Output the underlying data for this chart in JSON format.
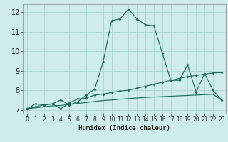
{
  "xlabel": "Humidex (Indice chaleur)",
  "bg_color": "#ceecea",
  "grid_color": "#b0d8d4",
  "line_color": "#1a6b5a",
  "xlim": [
    -0.5,
    23.5
  ],
  "ylim": [
    6.8,
    12.4
  ],
  "xticks": [
    0,
    1,
    2,
    3,
    4,
    5,
    6,
    7,
    8,
    9,
    10,
    11,
    12,
    13,
    14,
    15,
    16,
    17,
    18,
    19,
    20,
    21,
    22,
    23
  ],
  "yticks": [
    7,
    8,
    9,
    10,
    11,
    12
  ],
  "line1_x": [
    0,
    1,
    2,
    3,
    4,
    5,
    6,
    7,
    8,
    9,
    10,
    11,
    12,
    13,
    14,
    15,
    16,
    17,
    18,
    19,
    20,
    21,
    22,
    23
  ],
  "line1_y": [
    7.05,
    7.3,
    7.25,
    7.3,
    7.5,
    7.25,
    7.4,
    7.75,
    8.05,
    9.45,
    11.55,
    11.65,
    12.15,
    11.65,
    11.35,
    11.3,
    9.9,
    8.5,
    8.5,
    9.3,
    7.9,
    8.85,
    8.0,
    7.5
  ],
  "line2_x": [
    0,
    1,
    2,
    3,
    4,
    5,
    6,
    7,
    8,
    9,
    10,
    11,
    12,
    13,
    14,
    15,
    16,
    17,
    18,
    19,
    20,
    21,
    22,
    23
  ],
  "line2_y": [
    7.05,
    7.15,
    7.25,
    7.3,
    7.05,
    7.35,
    7.55,
    7.6,
    7.75,
    7.8,
    7.88,
    7.95,
    8.0,
    8.1,
    8.2,
    8.3,
    8.4,
    8.5,
    8.6,
    8.7,
    8.75,
    8.82,
    8.88,
    8.9
  ],
  "line3_x": [
    0,
    1,
    2,
    3,
    4,
    5,
    6,
    7,
    8,
    9,
    10,
    11,
    12,
    13,
    14,
    15,
    16,
    17,
    18,
    19,
    20,
    21,
    22,
    23
  ],
  "line3_y": [
    7.05,
    7.1,
    7.15,
    7.2,
    7.22,
    7.27,
    7.32,
    7.37,
    7.42,
    7.47,
    7.5,
    7.54,
    7.57,
    7.6,
    7.63,
    7.65,
    7.67,
    7.69,
    7.71,
    7.73,
    7.75,
    7.77,
    7.79,
    7.5
  ]
}
